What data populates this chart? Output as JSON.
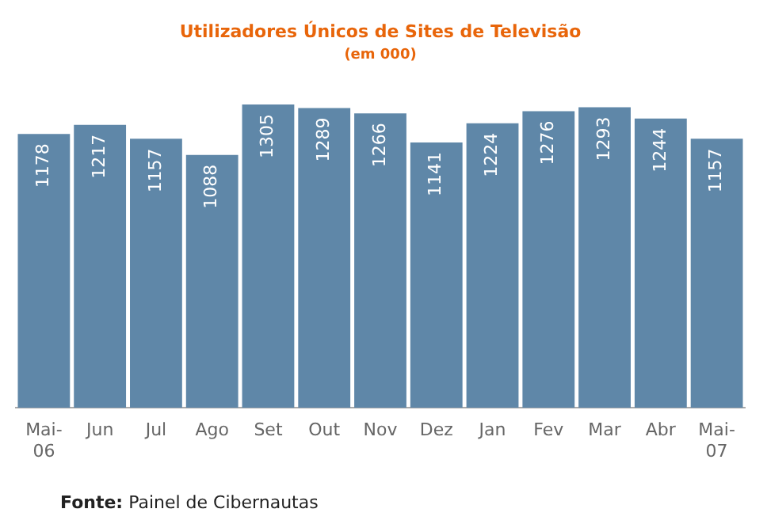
{
  "chart_data": {
    "type": "bar",
    "title": "Utilizadores Únicos de Sites de Televisão",
    "subtitle": "(em 000)",
    "categories": [
      "Mai-06",
      "Jun",
      "Jul",
      "Ago",
      "Set",
      "Out",
      "Nov",
      "Dez",
      "Jan",
      "Fev",
      "Mar",
      "Abr",
      "Mai-07"
    ],
    "values": [
      1178,
      1217,
      1157,
      1088,
      1305,
      1289,
      1266,
      1141,
      1224,
      1276,
      1293,
      1244,
      1157
    ],
    "color": "#5f87a8",
    "data_labels": true,
    "grid": false,
    "legend": false,
    "annotations": [
      "Fonte: Painel de Cibernautas"
    ]
  }
}
